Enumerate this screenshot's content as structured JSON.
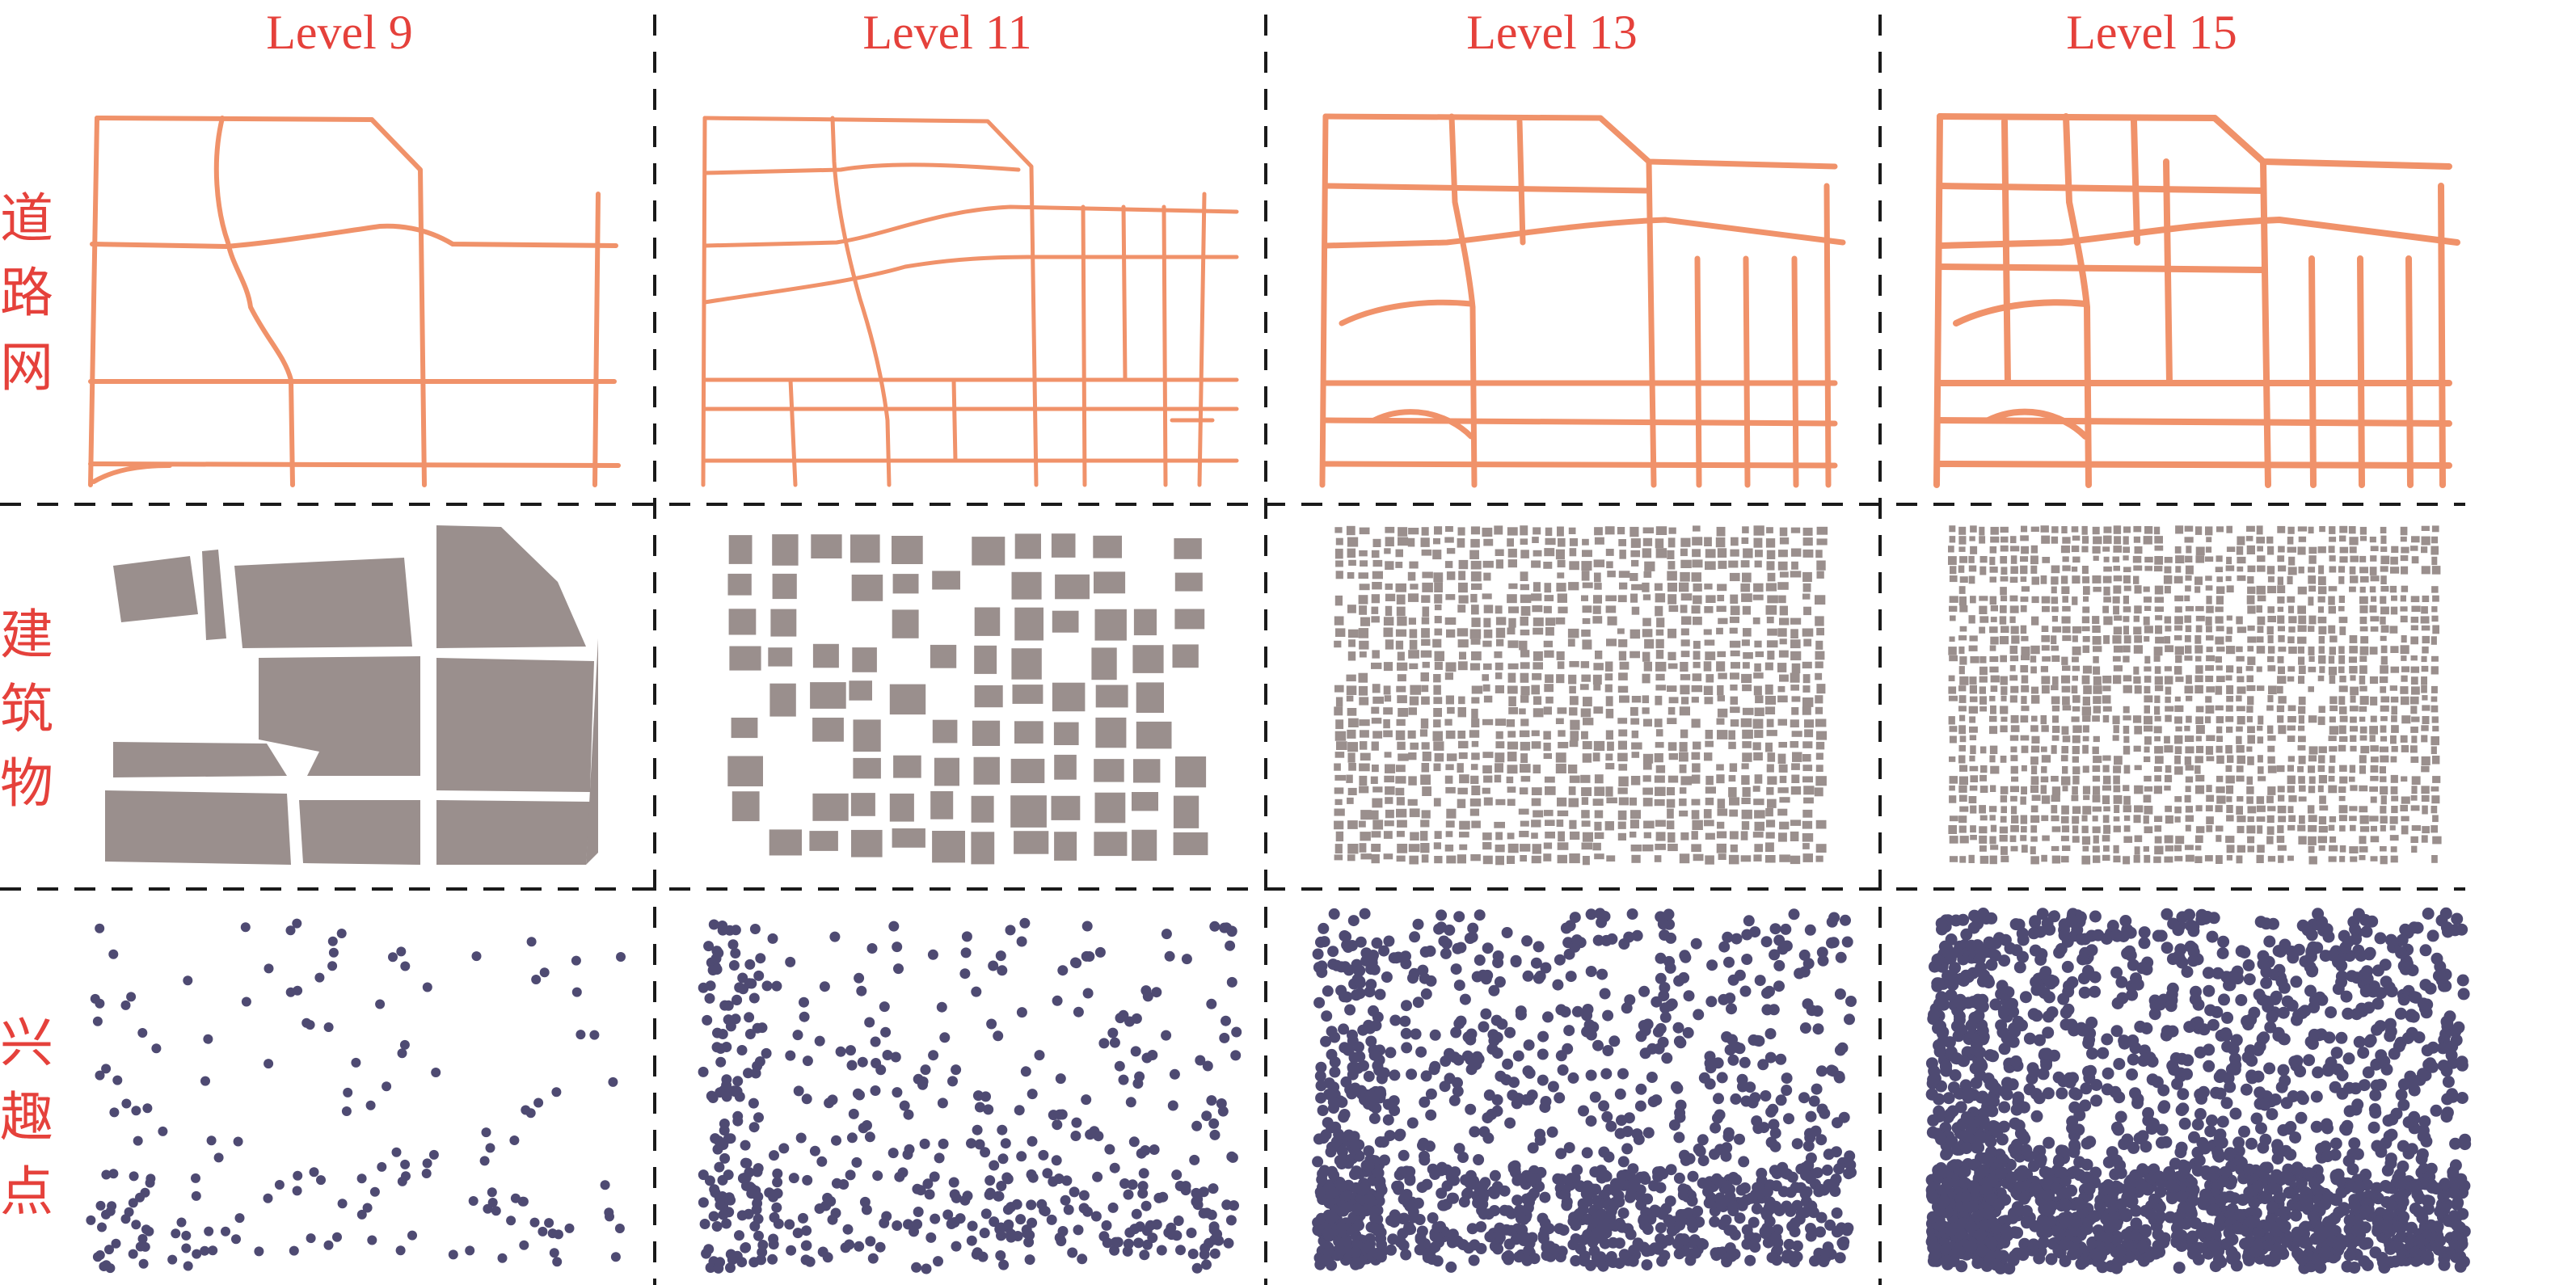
{
  "levels": {
    "l9": "Level 9",
    "l11": "Level 11",
    "l13": "Level 13",
    "l15": "Level 15"
  },
  "rows": {
    "road": [
      "道",
      "路",
      "网"
    ],
    "building": [
      "建",
      "筑",
      "物"
    ],
    "poi": [
      "兴",
      "趣",
      "点"
    ]
  },
  "colors": {
    "title_text": "#e5413b",
    "road": "#f0926a",
    "building": "#9a8f8d",
    "poi": "#4e4a72",
    "divider": "#1a1a1a"
  }
}
